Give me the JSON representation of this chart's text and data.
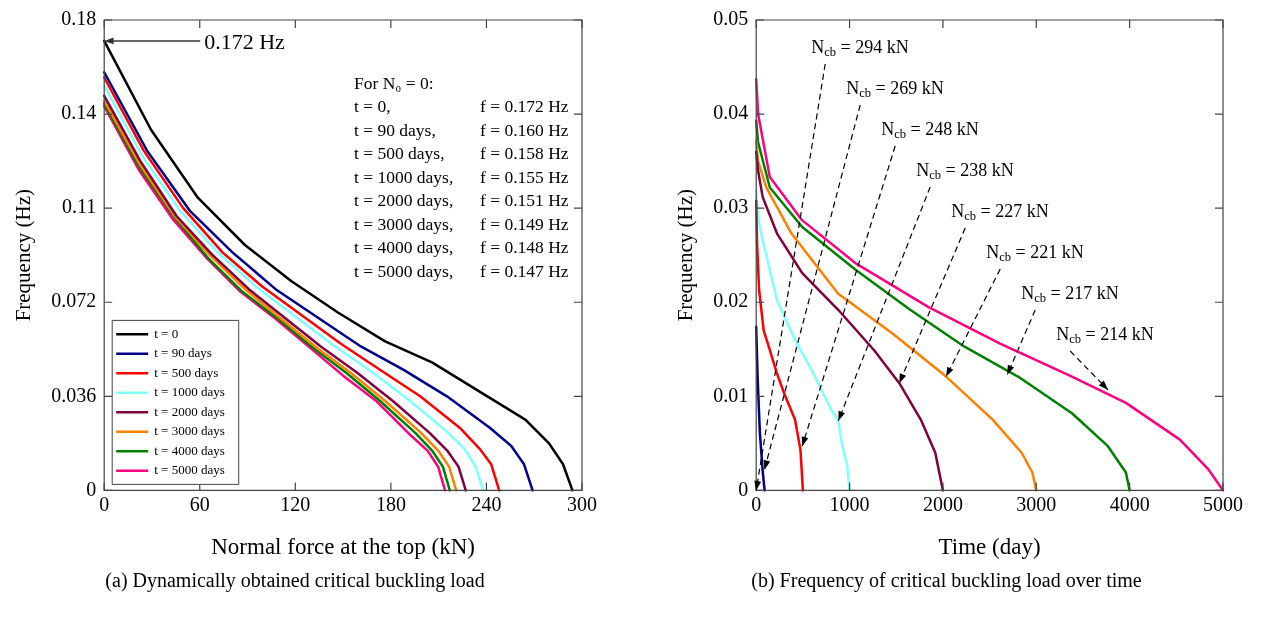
{
  "chart_data": [
    {
      "type": "line",
      "title": "(a) Dynamically obtained critical buckling load",
      "xlabel": "Normal force at the top (kN)",
      "ylabel": "Frequency (Hz)",
      "xlim": [
        0,
        300
      ],
      "xticks": [
        0,
        60,
        120,
        180,
        240,
        300
      ],
      "ylim": [
        0,
        0.18
      ],
      "yticks": [
        0,
        0.036,
        0.072,
        {
          "value": 0.108,
          "label": "0.11"
        },
        {
          "value": 0.144,
          "label": "0.14"
        },
        0.18
      ],
      "grid": false,
      "legend": "bottom left",
      "marker": "none",
      "series": [
        {
          "name": "t = 0",
          "color": "#000000",
          "x": [
            0,
            29.4,
            58.8,
            88.2,
            117.6,
            147,
            176.4,
            205.8,
            235.2,
            264.6,
            279.3,
            288.1,
            294
          ],
          "values": [
            0.172,
            0.138,
            0.112,
            0.094,
            0.08,
            0.068,
            0.057,
            0.049,
            0.038,
            0.027,
            0.018,
            0.01,
            0
          ]
        },
        {
          "name": "t = 90 days",
          "color": "#00008b",
          "x": [
            0,
            26.9,
            53.8,
            80.7,
            107.6,
            134.5,
            161.4,
            188.3,
            215.2,
            242.1,
            255.6,
            263.6,
            269
          ],
          "values": [
            0.16,
            0.13,
            0.107,
            0.091,
            0.077,
            0.066,
            0.055,
            0.046,
            0.036,
            0.024,
            0.017,
            0.01,
            0
          ]
        },
        {
          "name": "t = 500 days",
          "color": "#ff0000",
          "x": [
            0,
            24.8,
            49.6,
            74.4,
            99.2,
            124,
            148.8,
            173.6,
            198.4,
            223.2,
            235.6,
            243,
            248
          ],
          "values": [
            0.158,
            0.13,
            0.108,
            0.091,
            0.078,
            0.067,
            0.056,
            0.046,
            0.036,
            0.024,
            0.016,
            0.01,
            0
          ]
        },
        {
          "name": "t = 1000 days",
          "color": "#80ffff",
          "x": [
            0,
            23.8,
            47.6,
            71.4,
            95.2,
            119,
            142.8,
            166.6,
            190.4,
            214.2,
            226.1,
            233.2,
            238
          ],
          "values": [
            0.155,
            0.128,
            0.107,
            0.091,
            0.078,
            0.067,
            0.056,
            0.046,
            0.035,
            0.023,
            0.016,
            0.009,
            0
          ]
        },
        {
          "name": "t = 2000 days",
          "color": "#800040",
          "x": [
            0,
            22.7,
            45.4,
            68.1,
            90.8,
            113.5,
            136.2,
            158.9,
            181.6,
            204.3,
            215.7,
            222.5,
            227
          ],
          "values": [
            0.151,
            0.126,
            0.105,
            0.09,
            0.077,
            0.066,
            0.055,
            0.045,
            0.034,
            0.022,
            0.015,
            0.009,
            0
          ]
        },
        {
          "name": "t = 3000 days",
          "color": "#ff8000",
          "x": [
            0,
            22.1,
            44.2,
            66.3,
            88.4,
            110.5,
            132.6,
            154.7,
            176.8,
            198.9,
            210,
            216.6,
            221
          ],
          "values": [
            0.149,
            0.125,
            0.105,
            0.09,
            0.077,
            0.066,
            0.055,
            0.045,
            0.034,
            0.022,
            0.015,
            0.009,
            0
          ]
        },
        {
          "name": "t = 4000 days",
          "color": "#008000",
          "x": [
            0,
            21.7,
            43.4,
            65.1,
            86.8,
            108.5,
            130.2,
            151.9,
            173.6,
            195.3,
            206.2,
            212.7,
            217
          ],
          "values": [
            0.148,
            0.124,
            0.105,
            0.089,
            0.076,
            0.066,
            0.055,
            0.045,
            0.034,
            0.022,
            0.015,
            0.009,
            0
          ]
        },
        {
          "name": "t = 5000 days",
          "color": "#ff0080",
          "x": [
            0,
            21.4,
            42.8,
            64.2,
            85.6,
            107,
            128.4,
            149.8,
            171.2,
            192.6,
            203.3,
            209.7,
            214
          ],
          "values": [
            0.147,
            0.123,
            0.104,
            0.089,
            0.076,
            0.066,
            0.055,
            0.044,
            0.034,
            0.021,
            0.015,
            0.009,
            0
          ]
        }
      ],
      "annotations": [
        {
          "text": "0.172 Hz",
          "x": 0,
          "y": 0.172
        },
        "For N₀ = 0:",
        "t = 0, f = 0.172 Hz",
        "t = 90 days, f = 0.160 Hz",
        "t = 500 days, f = 0.158 Hz",
        "t = 1000 days, f = 0.155 Hz",
        "t = 2000 days, f = 0.151 Hz",
        "t = 3000 days, f = 0.149 Hz",
        "t = 4000 days, f = 0.148 Hz",
        "t = 5000 days, f = 0.147 Hz"
      ]
    },
    {
      "type": "line",
      "title": "(b) Frequency of critical buckling load over time",
      "xlabel": "Time (day)",
      "ylabel": "Frequency (Hz)",
      "xlim": [
        0,
        5000
      ],
      "xticks": [
        0,
        1000,
        2000,
        3000,
        4000,
        5000
      ],
      "ylim": [
        0,
        0.05
      ],
      "yticks": [
        0,
        0.01,
        0.02,
        0.03,
        0.04,
        0.05
      ],
      "grid": false,
      "marker": "none",
      "series": [
        {
          "color": "#00008b",
          "x": [
            0,
            15,
            40,
            70,
            90
          ],
          "values": [
            0.0174,
            0.012,
            0.006,
            0.002,
            0
          ]
        },
        {
          "color": "#ff0000",
          "x": [
            0,
            10,
            31,
            80,
            146,
            220,
            300,
            416,
            474,
            500
          ],
          "values": [
            0.0308,
            0.026,
            0.0213,
            0.017,
            0.0149,
            0.0125,
            0.0103,
            0.0075,
            0.0043,
            0
          ]
        },
        {
          "color": "#80ffff",
          "x": [
            0,
            20,
            69,
            223,
            416,
            609,
            801,
            880,
            917,
            975,
            1000
          ],
          "values": [
            0.0319,
            0.029,
            0.0266,
            0.0202,
            0.016,
            0.0125,
            0.0086,
            0.0074,
            0.005,
            0.0026,
            0
          ]
        },
        {
          "color": "#800040",
          "x": [
            0,
            20,
            69,
            223,
            493,
            878,
            1263,
            1533,
            1764,
            1918,
            2000
          ],
          "values": [
            0.036,
            0.034,
            0.0312,
            0.0273,
            0.0231,
            0.0192,
            0.0149,
            0.0114,
            0.0075,
            0.004,
            0
          ]
        },
        {
          "color": "#ff8000",
          "x": [
            0,
            20,
            108,
            378,
            878,
            1456,
            2034,
            2535,
            2843,
            2958,
            3000
          ],
          "values": [
            0.0372,
            0.035,
            0.0322,
            0.0273,
            0.0209,
            0.0167,
            0.0121,
            0.0075,
            0.004,
            0.0019,
            0
          ]
        },
        {
          "color": "#008000",
          "x": [
            0,
            20,
            146,
            493,
            1071,
            1649,
            2227,
            2804,
            3382,
            3767,
            3960,
            4000
          ],
          "values": [
            0.0393,
            0.037,
            0.0322,
            0.028,
            0.0234,
            0.0192,
            0.0153,
            0.0121,
            0.0082,
            0.0047,
            0.0019,
            0
          ]
        },
        {
          "color": "#ff0080",
          "x": [
            0,
            20,
            146,
            493,
            1071,
            1841,
            2612,
            3382,
            3960,
            4538,
            4846,
            5000
          ],
          "values": [
            0.0437,
            0.04,
            0.0333,
            0.0287,
            0.0241,
            0.0195,
            0.0156,
            0.0121,
            0.0093,
            0.0054,
            0.0022,
            0
          ]
        }
      ],
      "annotations": [
        "N$_{cb}$ = 294 kN",
        {
          "text": "N$_{cb}$ = 269 kN",
          "x": 89,
          "y": 0.0022
        },
        {
          "text": "N$_{cb}$ = 248 kN",
          "x": 493,
          "y": 0.0047
        },
        {
          "text": "N$_{cb}$ = 238 kN",
          "x": 880,
          "y": 0.0074
        },
        {
          "text": "N$_{cb}$ = 227 kN",
          "x": 1533,
          "y": 0.0114
        },
        {
          "text": "N$_{cb}$ = 221 kN",
          "x": 2034,
          "y": 0.0121
        },
        {
          "text": "N$_{cb}$ = 217 kN",
          "x": 2689,
          "y": 0.0123
        },
        {
          "text": "N$_{cb}$ = 214 kN",
          "x": 3767,
          "y": 0.0107
        }
      ]
    }
  ]
}
